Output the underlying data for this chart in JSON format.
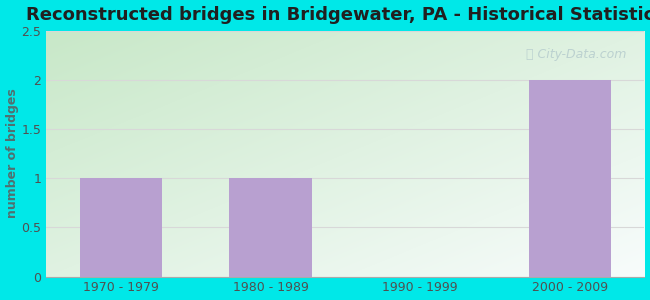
{
  "title": "Reconstructed bridges in Bridgewater, PA - Historical Statistics",
  "categories": [
    "1970 - 1979",
    "1980 - 1989",
    "1990 - 1999",
    "2000 - 2009"
  ],
  "values": [
    1,
    1,
    0,
    2
  ],
  "bar_color": "#b8a0d0",
  "ylabel": "number of bridges",
  "ylim": [
    0,
    2.5
  ],
  "yticks": [
    0,
    0.5,
    1,
    1.5,
    2,
    2.5
  ],
  "background_outer": "#00e8e8",
  "bg_top_left": "#c8e8c8",
  "bg_bottom_right": "#f5f8f5",
  "bg_top_right": "#e8f0f8",
  "grid_color": "#d8d8d8",
  "title_fontsize": 13,
  "axis_label_fontsize": 9,
  "tick_fontsize": 9,
  "watermark_text": "City-Data.com",
  "watermark_color": "#b8cece",
  "bar_width": 0.55,
  "ylabel_color": "#507070"
}
